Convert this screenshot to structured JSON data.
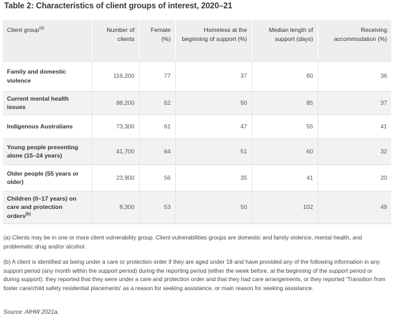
{
  "title": "Table 2: Characteristics of client groups of interest, 2020–21",
  "columns": [
    "Client group",
    "Number of clients",
    "Female (%)",
    "Homeless at the beginning of support (%)",
    "Median length of support (days)",
    "Receiving accommodation (%)"
  ],
  "client_group_footnote": "(a)",
  "rows": [
    {
      "group": "Family and domestic violence",
      "footnote": "",
      "clients": "116,200",
      "female": "77",
      "homeless": "37",
      "median_days": "60",
      "accommodation": "36"
    },
    {
      "group": "Current mental health issues",
      "footnote": "",
      "clients": "88,200",
      "female": "62",
      "homeless": "50",
      "median_days": "85",
      "accommodation": "37"
    },
    {
      "group": "Indigenous Australians",
      "footnote": "",
      "clients": "73,300",
      "female": "61",
      "homeless": "47",
      "median_days": "55",
      "accommodation": "41"
    },
    {
      "group": "Young people presenting alone (15–24 years)",
      "footnote": "",
      "clients": "41,700",
      "female": "64",
      "homeless": "51",
      "median_days": "60",
      "accommodation": "32"
    },
    {
      "group": "Older people (55 years or older)",
      "footnote": "",
      "clients": "23,900",
      "female": "56",
      "homeless": "35",
      "median_days": "41",
      "accommodation": "20"
    },
    {
      "group": "Children (0–17 years) on care and protection orders",
      "footnote": "(b)",
      "clients": "8,300",
      "female": "53",
      "homeless": "50",
      "median_days": "102",
      "accommodation": "49"
    }
  ],
  "notes": {
    "a": "(a) Clients may be in one or more client vulnerability group. Client vulnerabilities groups are domestic and family violence, mental health, and problematic drug and/or alcohol.",
    "b": "(b) A client is identified as being under a care or protection order if they are aged under 18 and have provided any of the following information in any support period (any month within the support period) during the reporting period (either the week before, at the beginning of the support period or during support): they reported that they were under a care and protection order and that they had care arrangements, or they reported 'Transition from foster care/child safety residential placements' as a reason for seeking assistance, or main reason for seeking assistance.",
    "source": "Source: AIHW 2021a."
  }
}
